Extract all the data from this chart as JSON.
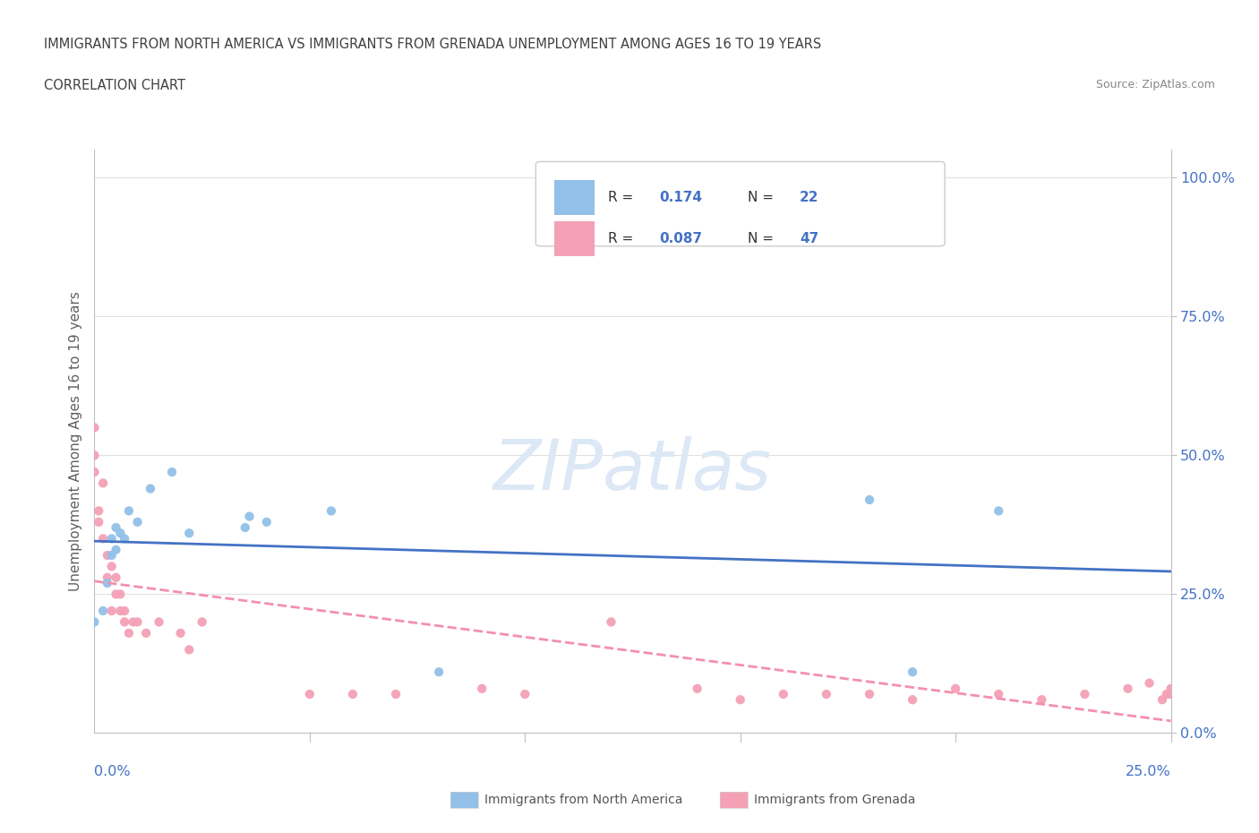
{
  "title_line1": "IMMIGRANTS FROM NORTH AMERICA VS IMMIGRANTS FROM GRENADA UNEMPLOYMENT AMONG AGES 16 TO 19 YEARS",
  "title_line2": "CORRELATION CHART",
  "source_text": "Source: ZipAtlas.com",
  "ylabel": "Unemployment Among Ages 16 to 19 years",
  "xmin": 0.0,
  "xmax": 0.25,
  "ymin": 0.0,
  "ymax": 1.05,
  "ytick_positions": [
    0.0,
    0.25,
    0.5,
    0.75,
    1.0
  ],
  "ytick_labels": [
    "0.0%",
    "25.0%",
    "50.0%",
    "75.0%",
    "100.0%"
  ],
  "xtick_positions": [
    0.0,
    0.25
  ],
  "xtick_labels": [
    "0.0%",
    "25.0%"
  ],
  "north_america_x": [
    0.0,
    0.002,
    0.003,
    0.004,
    0.004,
    0.005,
    0.005,
    0.006,
    0.007,
    0.008,
    0.01,
    0.013,
    0.018,
    0.022,
    0.035,
    0.036,
    0.04,
    0.055,
    0.08,
    0.18,
    0.19,
    0.21
  ],
  "north_america_y": [
    0.2,
    0.22,
    0.27,
    0.32,
    0.35,
    0.33,
    0.37,
    0.36,
    0.35,
    0.4,
    0.38,
    0.44,
    0.47,
    0.36,
    0.37,
    0.39,
    0.38,
    0.4,
    0.11,
    0.42,
    0.11,
    0.4
  ],
  "grenada_x": [
    0.0,
    0.0,
    0.0,
    0.001,
    0.001,
    0.002,
    0.002,
    0.003,
    0.003,
    0.004,
    0.004,
    0.005,
    0.005,
    0.006,
    0.006,
    0.007,
    0.007,
    0.008,
    0.009,
    0.01,
    0.012,
    0.015,
    0.02,
    0.022,
    0.025,
    0.05,
    0.06,
    0.07,
    0.09,
    0.1,
    0.12,
    0.14,
    0.15,
    0.16,
    0.17,
    0.18,
    0.19,
    0.2,
    0.21,
    0.22,
    0.23,
    0.24,
    0.245,
    0.248,
    0.249,
    0.25,
    0.25
  ],
  "grenada_y": [
    0.55,
    0.5,
    0.47,
    0.4,
    0.38,
    0.35,
    0.45,
    0.32,
    0.28,
    0.3,
    0.22,
    0.28,
    0.25,
    0.25,
    0.22,
    0.2,
    0.22,
    0.18,
    0.2,
    0.2,
    0.18,
    0.2,
    0.18,
    0.15,
    0.2,
    0.07,
    0.07,
    0.07,
    0.08,
    0.07,
    0.2,
    0.08,
    0.06,
    0.07,
    0.07,
    0.07,
    0.06,
    0.08,
    0.07,
    0.06,
    0.07,
    0.08,
    0.09,
    0.06,
    0.07,
    0.08,
    0.07
  ],
  "R_north_america": 0.174,
  "N_north_america": 22,
  "R_grenada": 0.087,
  "N_grenada": 47,
  "color_north_america": "#92c0e8",
  "color_grenada": "#f4a0b5",
  "line_color_north_america": "#4472c4",
  "line_color_grenada": "#f48fb1",
  "bg_color": "#ffffff",
  "grid_color": "#e0e0e0",
  "title_color": "#404040",
  "axis_label_color": "#4472c4",
  "watermark_color": "#dce8f5",
  "ylabel_color": "#606060"
}
